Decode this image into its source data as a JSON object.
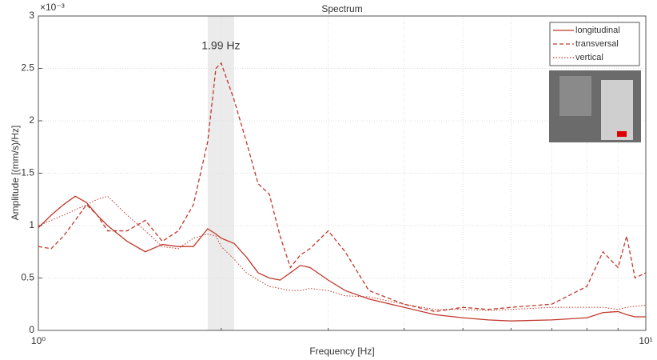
{
  "chart_data": {
    "type": "line",
    "title": "Spectrum",
    "xlabel": "Frequency [Hz]",
    "ylabel": "Amplitude [(mm/s)/Hz]",
    "y_exponent": "×10⁻³",
    "annotation": "1.99 Hz",
    "highlight": [
      1.9,
      2.1
    ],
    "xscale": "log",
    "grid": true,
    "legend": "upper right",
    "xlim": [
      1,
      10
    ],
    "xticks": [
      {
        "value": 1,
        "label": "10⁰"
      },
      {
        "value": 10,
        "label": "10¹"
      }
    ],
    "minor_xticks": [
      2,
      3,
      4,
      5,
      6,
      7,
      8,
      9
    ],
    "ylim": [
      0,
      3
    ],
    "yticks": [
      0,
      0.5,
      1,
      1.5,
      2,
      2.5,
      3
    ],
    "x": [
      1,
      1.05,
      1.1,
      1.15,
      1.2,
      1.25,
      1.3,
      1.4,
      1.5,
      1.6,
      1.7,
      1.8,
      1.9,
      1.96,
      2.0,
      2.1,
      2.2,
      2.3,
      2.4,
      2.5,
      2.6,
      2.7,
      2.8,
      3.0,
      3.2,
      3.5,
      4,
      4.5,
      5,
      5.5,
      6,
      7,
      8,
      8.5,
      9,
      9.3,
      9.6,
      10
    ],
    "series": [
      {
        "name": "longitudinal",
        "color": "#c0392b",
        "linestyle": "solid",
        "values": [
          0.98,
          1.1,
          1.2,
          1.28,
          1.22,
          1.1,
          1.0,
          0.85,
          0.75,
          0.82,
          0.8,
          0.8,
          0.97,
          0.92,
          0.88,
          0.83,
          0.7,
          0.55,
          0.5,
          0.48,
          0.55,
          0.62,
          0.6,
          0.48,
          0.38,
          0.3,
          0.22,
          0.15,
          0.12,
          0.1,
          0.09,
          0.1,
          0.12,
          0.17,
          0.18,
          0.15,
          0.13,
          0.13
        ]
      },
      {
        "name": "transversal",
        "color": "#c0392b",
        "linestyle": "dashed",
        "values": [
          0.8,
          0.78,
          0.9,
          1.05,
          1.2,
          1.1,
          0.95,
          0.95,
          1.05,
          0.85,
          0.95,
          1.2,
          1.8,
          2.5,
          2.55,
          2.2,
          1.8,
          1.4,
          1.3,
          0.9,
          0.6,
          0.72,
          0.78,
          0.95,
          0.75,
          0.38,
          0.25,
          0.18,
          0.22,
          0.2,
          0.22,
          0.25,
          0.42,
          0.75,
          0.6,
          0.9,
          0.5,
          0.55
        ]
      },
      {
        "name": "vertical",
        "color": "#c0392b",
        "linestyle": "dotted",
        "values": [
          1.0,
          1.05,
          1.1,
          1.15,
          1.2,
          1.25,
          1.28,
          1.1,
          0.95,
          0.8,
          0.78,
          0.88,
          0.92,
          0.9,
          0.8,
          0.68,
          0.55,
          0.48,
          0.42,
          0.4,
          0.38,
          0.38,
          0.4,
          0.38,
          0.33,
          0.32,
          0.25,
          0.2,
          0.2,
          0.19,
          0.2,
          0.22,
          0.22,
          0.22,
          0.2,
          0.22,
          0.23,
          0.24
        ]
      }
    ]
  }
}
